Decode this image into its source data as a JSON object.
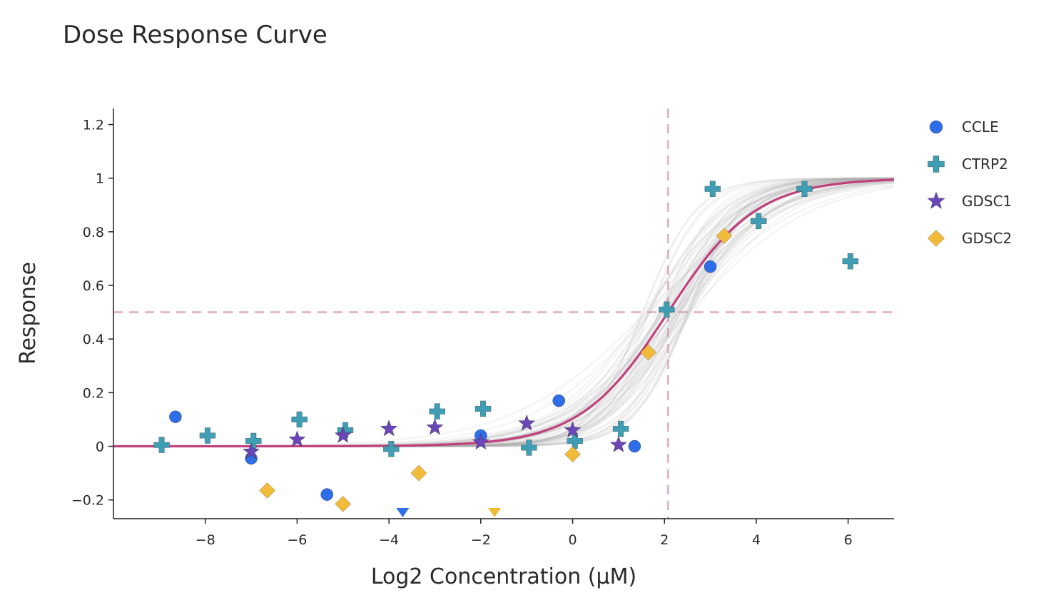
{
  "chart_data": {
    "type": "scatter",
    "title": "Dose Response Curve",
    "xlabel": "Log2 Concentration (μM)",
    "ylabel": "Response",
    "xlim": [
      -10,
      7
    ],
    "ylim": [
      -0.27,
      1.26
    ],
    "x_ticks": [
      -8,
      -6,
      -4,
      -2,
      0,
      2,
      4,
      6
    ],
    "x_tick_labels": [
      "−8",
      "−6",
      "−4",
      "−2",
      "0",
      "2",
      "4",
      "6"
    ],
    "y_ticks": [
      -0.2,
      0,
      0.2,
      0.4,
      0.6,
      0.8,
      1,
      1.2
    ],
    "y_tick_labels": [
      "−0.2",
      "0",
      "0.2",
      "0.4",
      "0.6",
      "0.8",
      "1",
      "1.2"
    ],
    "grid": false,
    "legend_position": "right",
    "reference_lines": {
      "ic50_x": 2.08,
      "response_y": 0.5,
      "color": "#e3b7c5"
    },
    "fit_curve": {
      "color": "#c0407c",
      "top": 1.0,
      "bottom": 0.0,
      "ic50_log2": 2.08,
      "slope": 1.5
    },
    "bootstrap_curves": {
      "color": "#a9a9a9",
      "count": 60
    },
    "series": [
      {
        "name": "CCLE",
        "marker": "circle",
        "color": "#2e6ee8",
        "points": [
          {
            "x": -8.65,
            "y": 0.11
          },
          {
            "x": -7.0,
            "y": -0.045
          },
          {
            "x": -5.35,
            "y": -0.18
          },
          {
            "x": -3.7,
            "y": -0.26
          },
          {
            "x": -2.0,
            "y": 0.04
          },
          {
            "x": -0.3,
            "y": 0.17
          },
          {
            "x": 1.35,
            "y": 0.0
          },
          {
            "x": 3.0,
            "y": 0.67
          }
        ]
      },
      {
        "name": "CTRP2",
        "marker": "cross",
        "color": "#3f9db4",
        "points": [
          {
            "x": -8.95,
            "y": 0.005
          },
          {
            "x": -7.95,
            "y": 0.04
          },
          {
            "x": -6.95,
            "y": 0.02
          },
          {
            "x": -5.95,
            "y": 0.1
          },
          {
            "x": -4.95,
            "y": 0.06
          },
          {
            "x": -3.95,
            "y": -0.01
          },
          {
            "x": -2.95,
            "y": 0.13
          },
          {
            "x": -1.95,
            "y": 0.14
          },
          {
            "x": -0.95,
            "y": -0.005
          },
          {
            "x": 0.05,
            "y": 0.02
          },
          {
            "x": 1.05,
            "y": 0.065
          },
          {
            "x": 2.05,
            "y": 0.51
          },
          {
            "x": 3.05,
            "y": 0.96
          },
          {
            "x": 4.05,
            "y": 0.84
          },
          {
            "x": 5.05,
            "y": 0.96
          },
          {
            "x": 6.05,
            "y": 0.69
          }
        ]
      },
      {
        "name": "GDSC1",
        "marker": "star",
        "color": "#6a46b8",
        "points": [
          {
            "x": -7.0,
            "y": -0.02
          },
          {
            "x": -6.0,
            "y": 0.025
          },
          {
            "x": -5.0,
            "y": 0.04
          },
          {
            "x": -4.0,
            "y": 0.065
          },
          {
            "x": -3.0,
            "y": 0.07
          },
          {
            "x": -2.0,
            "y": 0.015
          },
          {
            "x": -1.0,
            "y": 0.085
          },
          {
            "x": 0.0,
            "y": 0.06
          },
          {
            "x": 1.0,
            "y": 0.005
          }
        ]
      },
      {
        "name": "GDSC2",
        "marker": "diamond",
        "color": "#f3bb3a",
        "points": [
          {
            "x": -6.65,
            "y": -0.165
          },
          {
            "x": -5.0,
            "y": -0.215
          },
          {
            "x": -3.35,
            "y": -0.1
          },
          {
            "x": -1.7,
            "y": -0.26
          },
          {
            "x": 0.0,
            "y": -0.03
          },
          {
            "x": 1.65,
            "y": 0.35
          },
          {
            "x": 3.3,
            "y": 0.785
          }
        ]
      }
    ]
  }
}
